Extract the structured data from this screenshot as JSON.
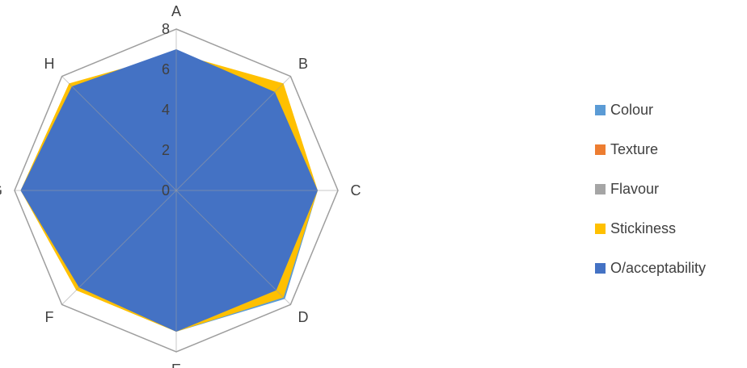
{
  "chart_data": {
    "type": "radar",
    "categories": [
      "A",
      "B",
      "C",
      "D",
      "E",
      "F",
      "G",
      "H"
    ],
    "rmin": 0,
    "rmax": 8,
    "ticks": [
      "0",
      "2",
      "4",
      "6",
      "8"
    ],
    "grid": true,
    "legend_position": "right",
    "series": [
      {
        "name": "Colour",
        "color": "#5B9BD5",
        "values": [
          6.8,
          7.0,
          7.0,
          7.6,
          7.0,
          6.9,
          7.7,
          7.4
        ]
      },
      {
        "name": "Texture",
        "color": "#ED7D31",
        "values": [
          6.6,
          6.9,
          6.9,
          7.2,
          6.9,
          6.8,
          7.6,
          7.2
        ]
      },
      {
        "name": "Flavour",
        "color": "#A5A5A5",
        "values": [
          6.6,
          6.9,
          6.9,
          7.4,
          6.9,
          6.8,
          7.6,
          7.3
        ]
      },
      {
        "name": "Stickiness",
        "color": "#FFC000",
        "values": [
          6.8,
          7.5,
          7.0,
          7.5,
          7.0,
          7.0,
          7.7,
          7.5
        ]
      },
      {
        "name": "O/acceptability",
        "color": "#4472C4",
        "values": [
          7.0,
          6.9,
          7.0,
          7.0,
          7.0,
          6.8,
          7.7,
          7.3
        ]
      }
    ]
  }
}
